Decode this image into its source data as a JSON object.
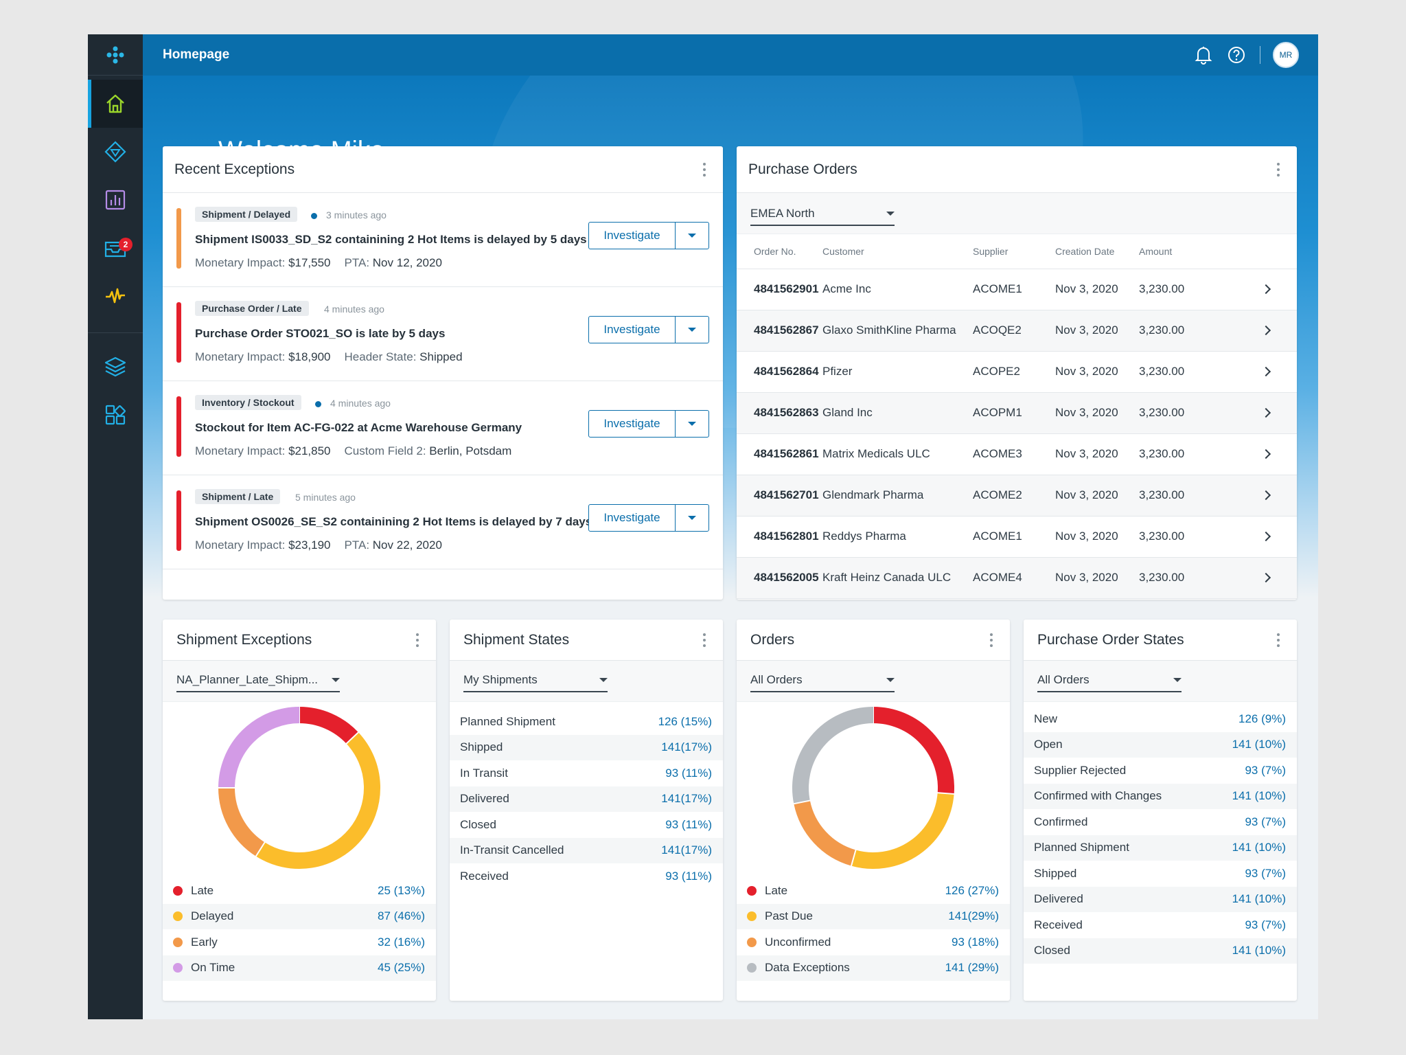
{
  "header": {
    "title": "Homepage",
    "avatar_initials": "MR"
  },
  "sidebar": {
    "items": [
      {
        "name": "home",
        "icon": "home-icon",
        "active": true
      },
      {
        "name": "diamond",
        "icon": "diamond-icon"
      },
      {
        "name": "analytics",
        "icon": "chart-icon"
      },
      {
        "name": "inbox",
        "icon": "inbox-icon",
        "badge": "2"
      },
      {
        "name": "activity",
        "icon": "pulse-icon"
      },
      {
        "name": "layers",
        "icon": "layers-icon"
      },
      {
        "name": "apps",
        "icon": "apps-icon"
      }
    ]
  },
  "welcome": "Welcome Mike",
  "recent_exceptions": {
    "title": "Recent Exceptions",
    "investigate_label": "Investigate",
    "items": [
      {
        "tag": "Shipment / Delayed",
        "dot": true,
        "time": "3 minutes ago",
        "title": "Shipment IS0033_SD_S2 containining 2 Hot Items is delayed by 5 days",
        "impact_label": "Monetary Impact:",
        "impact": "$17,550",
        "extra_label": "PTA:",
        "extra": "Nov 12, 2020",
        "color": "#f2994a"
      },
      {
        "tag": "Purchase Order  / Late",
        "dot": false,
        "time": "4 minutes ago",
        "title": "Purchase Order STO021_SO is late by 5 days",
        "impact_label": "Monetary Impact:",
        "impact": "$18,900",
        "extra_label": "Header State:",
        "extra": "Shipped",
        "color": "#e4202c"
      },
      {
        "tag": "Inventory / Stockout",
        "dot": true,
        "time": "4 minutes ago",
        "title": "Stockout for Item AC-FG-022 at Acme Warehouse Germany",
        "impact_label": "Monetary Impact:",
        "impact": "$21,850",
        "extra_label": "Custom Field 2:",
        "extra": "Berlin, Potsdam",
        "color": "#e4202c"
      },
      {
        "tag": "Shipment  / Late",
        "dot": false,
        "time": "5 minutes ago",
        "title": "Shipment OS0026_SE_S2 containining 2 Hot Items is delayed by 7 days",
        "impact_label": "Monetary Impact:",
        "impact": "$23,190",
        "extra_label": "PTA:",
        "extra": "Nov 22, 2020",
        "color": "#e4202c"
      }
    ]
  },
  "purchase_orders": {
    "title": "Purchase Orders",
    "filter": "EMEA North",
    "columns": [
      "Order No.",
      "Customer",
      "Supplier",
      "Creation Date",
      "Amount"
    ],
    "rows": [
      [
        "4841562901",
        "Acme Inc",
        "ACOME1",
        "Nov 3, 2020",
        "3,230.00"
      ],
      [
        "4841562867",
        "Glaxo SmithKline Pharma",
        "ACOQE2",
        "Nov 3, 2020",
        "3,230.00"
      ],
      [
        "4841562864",
        "Pfizer",
        "ACOPE2",
        "Nov 3, 2020",
        "3,230.00"
      ],
      [
        "4841562863",
        "Gland Inc",
        "ACOPM1",
        "Nov 3, 2020",
        "3,230.00"
      ],
      [
        "4841562861",
        "Matrix Medicals ULC",
        "ACOME3",
        "Nov 3, 2020",
        "3,230.00"
      ],
      [
        "4841562701",
        "Glendmark Pharma",
        "ACOME2",
        "Nov 3, 2020",
        "3,230.00"
      ],
      [
        "4841562801",
        "Reddys Pharma",
        "ACOME1",
        "Nov 3, 2020",
        "3,230.00"
      ],
      [
        "4841562005",
        "Kraft Heinz Canada ULC",
        "ACOME4",
        "Nov 3, 2020",
        "3,230.00"
      ]
    ]
  },
  "shipment_exceptions": {
    "title": "Shipment Exceptions",
    "filter": "NA_Planner_Late_Shipm...",
    "legend": [
      {
        "label": "Late",
        "value": "25 (13%)",
        "color": "#e4202c"
      },
      {
        "label": "Delayed",
        "value": "87 (46%)",
        "color": "#fbbd2b"
      },
      {
        "label": "Early",
        "value": "32 (16%)",
        "color": "#f2994a"
      },
      {
        "label": "On Time",
        "value": "45 (25%)",
        "color": "#d39be6"
      }
    ]
  },
  "shipment_states": {
    "title": "Shipment States",
    "filter": "My Shipments",
    "rows": [
      {
        "label": "Planned Shipment",
        "value": "126 (15%)"
      },
      {
        "label": "Shipped",
        "value": "141(17%)"
      },
      {
        "label": "In Transit",
        "value": "93 (11%)"
      },
      {
        "label": "Delivered",
        "value": "141(17%)"
      },
      {
        "label": "Closed",
        "value": "93 (11%)"
      },
      {
        "label": "In-Transit Cancelled",
        "value": "141(17%)"
      },
      {
        "label": "Received",
        "value": "93 (11%)"
      }
    ]
  },
  "orders": {
    "title": "Orders",
    "filter": "All Orders",
    "legend": [
      {
        "label": "Late",
        "value": "126 (27%)",
        "color": "#e4202c"
      },
      {
        "label": "Past Due",
        "value": "141(29%)",
        "color": "#fbbd2b"
      },
      {
        "label": "Unconfirmed",
        "value": "93 (18%)",
        "color": "#f2994a"
      },
      {
        "label": "Data Exceptions",
        "value": "141 (29%)",
        "color": "#b7bcc1"
      }
    ]
  },
  "po_states": {
    "title": "Purchase Order States",
    "filter": "All Orders",
    "rows": [
      {
        "label": "New",
        "value": "126 (9%)"
      },
      {
        "label": "Open",
        "value": "141 (10%)"
      },
      {
        "label": "Supplier Rejected",
        "value": "93 (7%)"
      },
      {
        "label": "Confirmed with Changes",
        "value": "141 (10%)"
      },
      {
        "label": "Confirmed",
        "value": "93 (7%)"
      },
      {
        "label": "Planned Shipment",
        "value": "141 (10%)"
      },
      {
        "label": "Shipped",
        "value": "93 (7%)"
      },
      {
        "label": "Delivered",
        "value": "141 (10%)"
      },
      {
        "label": "Received",
        "value": "93 (7%)"
      },
      {
        "label": "Closed",
        "value": "141 (10%)"
      }
    ]
  },
  "chart_data": [
    {
      "type": "pie",
      "categories": [
        "Late",
        "Delayed",
        "Early",
        "On Time"
      ],
      "values": [
        13,
        46,
        16,
        25
      ],
      "colors": [
        "#e4202c",
        "#fbbd2b",
        "#f2994a",
        "#d39be6"
      ]
    },
    {
      "type": "pie",
      "categories": [
        "Late",
        "Past Due",
        "Unconfirmed",
        "Data Exceptions"
      ],
      "values": [
        27,
        29,
        18,
        29
      ],
      "colors": [
        "#e4202c",
        "#fbbd2b",
        "#f2994a",
        "#b7bcc1"
      ]
    }
  ]
}
